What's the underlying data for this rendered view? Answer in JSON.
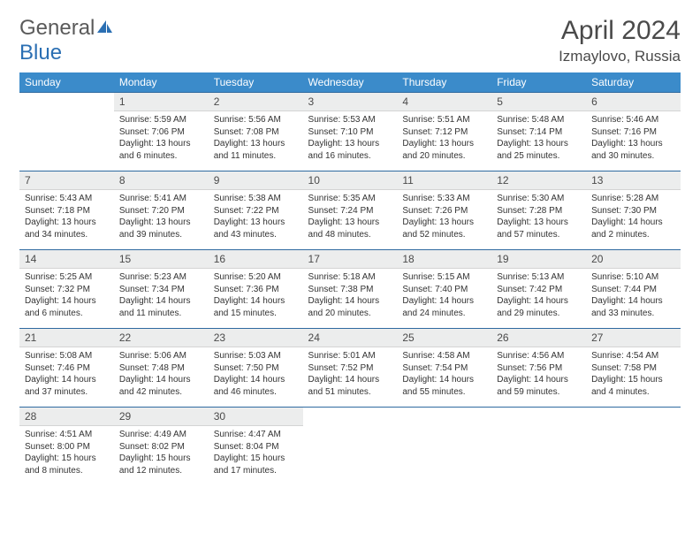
{
  "brand": {
    "part1": "General",
    "part2": "Blue"
  },
  "title": "April 2024",
  "location": "Izmaylovo, Russia",
  "colors": {
    "header_bg": "#3b8bca",
    "header_text": "#ffffff",
    "daynum_bg": "#eceded",
    "border_top": "#2f6aa0",
    "text": "#333333",
    "brand_gray": "#5a5a5a",
    "brand_blue": "#2b6fb3"
  },
  "day_headers": [
    "Sunday",
    "Monday",
    "Tuesday",
    "Wednesday",
    "Thursday",
    "Friday",
    "Saturday"
  ],
  "weeks": [
    {
      "nums": [
        "",
        "1",
        "2",
        "3",
        "4",
        "5",
        "6"
      ],
      "cells": [
        null,
        {
          "sr": "Sunrise: 5:59 AM",
          "ss": "Sunset: 7:06 PM",
          "d1": "Daylight: 13 hours",
          "d2": "and 6 minutes."
        },
        {
          "sr": "Sunrise: 5:56 AM",
          "ss": "Sunset: 7:08 PM",
          "d1": "Daylight: 13 hours",
          "d2": "and 11 minutes."
        },
        {
          "sr": "Sunrise: 5:53 AM",
          "ss": "Sunset: 7:10 PM",
          "d1": "Daylight: 13 hours",
          "d2": "and 16 minutes."
        },
        {
          "sr": "Sunrise: 5:51 AM",
          "ss": "Sunset: 7:12 PM",
          "d1": "Daylight: 13 hours",
          "d2": "and 20 minutes."
        },
        {
          "sr": "Sunrise: 5:48 AM",
          "ss": "Sunset: 7:14 PM",
          "d1": "Daylight: 13 hours",
          "d2": "and 25 minutes."
        },
        {
          "sr": "Sunrise: 5:46 AM",
          "ss": "Sunset: 7:16 PM",
          "d1": "Daylight: 13 hours",
          "d2": "and 30 minutes."
        }
      ]
    },
    {
      "nums": [
        "7",
        "8",
        "9",
        "10",
        "11",
        "12",
        "13"
      ],
      "cells": [
        {
          "sr": "Sunrise: 5:43 AM",
          "ss": "Sunset: 7:18 PM",
          "d1": "Daylight: 13 hours",
          "d2": "and 34 minutes."
        },
        {
          "sr": "Sunrise: 5:41 AM",
          "ss": "Sunset: 7:20 PM",
          "d1": "Daylight: 13 hours",
          "d2": "and 39 minutes."
        },
        {
          "sr": "Sunrise: 5:38 AM",
          "ss": "Sunset: 7:22 PM",
          "d1": "Daylight: 13 hours",
          "d2": "and 43 minutes."
        },
        {
          "sr": "Sunrise: 5:35 AM",
          "ss": "Sunset: 7:24 PM",
          "d1": "Daylight: 13 hours",
          "d2": "and 48 minutes."
        },
        {
          "sr": "Sunrise: 5:33 AM",
          "ss": "Sunset: 7:26 PM",
          "d1": "Daylight: 13 hours",
          "d2": "and 52 minutes."
        },
        {
          "sr": "Sunrise: 5:30 AM",
          "ss": "Sunset: 7:28 PM",
          "d1": "Daylight: 13 hours",
          "d2": "and 57 minutes."
        },
        {
          "sr": "Sunrise: 5:28 AM",
          "ss": "Sunset: 7:30 PM",
          "d1": "Daylight: 14 hours",
          "d2": "and 2 minutes."
        }
      ]
    },
    {
      "nums": [
        "14",
        "15",
        "16",
        "17",
        "18",
        "19",
        "20"
      ],
      "cells": [
        {
          "sr": "Sunrise: 5:25 AM",
          "ss": "Sunset: 7:32 PM",
          "d1": "Daylight: 14 hours",
          "d2": "and 6 minutes."
        },
        {
          "sr": "Sunrise: 5:23 AM",
          "ss": "Sunset: 7:34 PM",
          "d1": "Daylight: 14 hours",
          "d2": "and 11 minutes."
        },
        {
          "sr": "Sunrise: 5:20 AM",
          "ss": "Sunset: 7:36 PM",
          "d1": "Daylight: 14 hours",
          "d2": "and 15 minutes."
        },
        {
          "sr": "Sunrise: 5:18 AM",
          "ss": "Sunset: 7:38 PM",
          "d1": "Daylight: 14 hours",
          "d2": "and 20 minutes."
        },
        {
          "sr": "Sunrise: 5:15 AM",
          "ss": "Sunset: 7:40 PM",
          "d1": "Daylight: 14 hours",
          "d2": "and 24 minutes."
        },
        {
          "sr": "Sunrise: 5:13 AM",
          "ss": "Sunset: 7:42 PM",
          "d1": "Daylight: 14 hours",
          "d2": "and 29 minutes."
        },
        {
          "sr": "Sunrise: 5:10 AM",
          "ss": "Sunset: 7:44 PM",
          "d1": "Daylight: 14 hours",
          "d2": "and 33 minutes."
        }
      ]
    },
    {
      "nums": [
        "21",
        "22",
        "23",
        "24",
        "25",
        "26",
        "27"
      ],
      "cells": [
        {
          "sr": "Sunrise: 5:08 AM",
          "ss": "Sunset: 7:46 PM",
          "d1": "Daylight: 14 hours",
          "d2": "and 37 minutes."
        },
        {
          "sr": "Sunrise: 5:06 AM",
          "ss": "Sunset: 7:48 PM",
          "d1": "Daylight: 14 hours",
          "d2": "and 42 minutes."
        },
        {
          "sr": "Sunrise: 5:03 AM",
          "ss": "Sunset: 7:50 PM",
          "d1": "Daylight: 14 hours",
          "d2": "and 46 minutes."
        },
        {
          "sr": "Sunrise: 5:01 AM",
          "ss": "Sunset: 7:52 PM",
          "d1": "Daylight: 14 hours",
          "d2": "and 51 minutes."
        },
        {
          "sr": "Sunrise: 4:58 AM",
          "ss": "Sunset: 7:54 PM",
          "d1": "Daylight: 14 hours",
          "d2": "and 55 minutes."
        },
        {
          "sr": "Sunrise: 4:56 AM",
          "ss": "Sunset: 7:56 PM",
          "d1": "Daylight: 14 hours",
          "d2": "and 59 minutes."
        },
        {
          "sr": "Sunrise: 4:54 AM",
          "ss": "Sunset: 7:58 PM",
          "d1": "Daylight: 15 hours",
          "d2": "and 4 minutes."
        }
      ]
    },
    {
      "nums": [
        "28",
        "29",
        "30",
        "",
        "",
        "",
        ""
      ],
      "cells": [
        {
          "sr": "Sunrise: 4:51 AM",
          "ss": "Sunset: 8:00 PM",
          "d1": "Daylight: 15 hours",
          "d2": "and 8 minutes."
        },
        {
          "sr": "Sunrise: 4:49 AM",
          "ss": "Sunset: 8:02 PM",
          "d1": "Daylight: 15 hours",
          "d2": "and 12 minutes."
        },
        {
          "sr": "Sunrise: 4:47 AM",
          "ss": "Sunset: 8:04 PM",
          "d1": "Daylight: 15 hours",
          "d2": "and 17 minutes."
        },
        null,
        null,
        null,
        null
      ]
    }
  ]
}
